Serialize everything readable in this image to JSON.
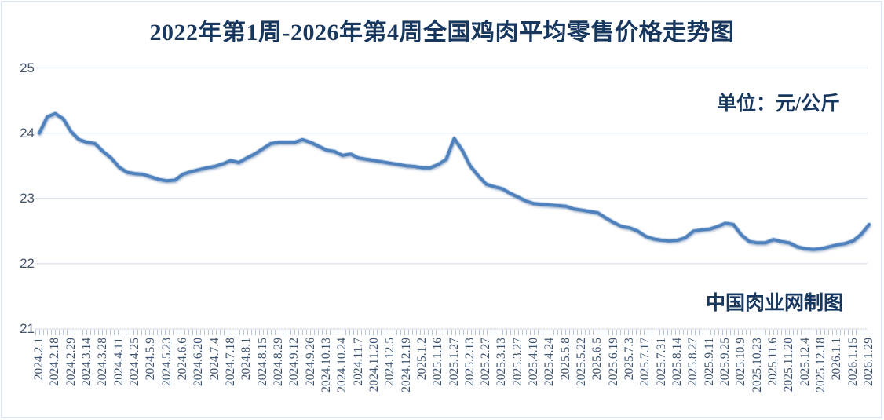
{
  "page": {
    "title": "2022年第1周-2026年第4周全国鸡肉平均零售价格走势图",
    "unit_label": "单位：元/公斤",
    "watermark": "中国肉业网制图"
  },
  "colors": {
    "title": "#17375e",
    "axis_labels": "#44546a",
    "grid": "#d9e1ea",
    "axis_ticks": "#b3c2d4",
    "line": "#4f81bd",
    "line_halo": "#9db8d8",
    "frame": "#dde7f3"
  },
  "chart_data": {
    "type": "line",
    "title": "2022年第1周-2026年第4周全国鸡肉平均零售价格走势图",
    "unit": "元/公斤",
    "xlabel": "",
    "ylabel": "",
    "ylim": [
      21,
      25
    ],
    "yticks": [
      25,
      24,
      23,
      22,
      21
    ],
    "grid": true,
    "legend": "none",
    "points_per_tick_label": 2,
    "x_tick_labels": [
      "2024.2.1",
      "2024.2.18",
      "2024.2.29",
      "2024.3.14",
      "2024.3.28",
      "2024.4.11",
      "2024.4.25",
      "2024.5.9",
      "2024.5.23",
      "2024.6.6",
      "2024.6.20",
      "2024.7.4",
      "2024.7.18",
      "2024.8.1",
      "2024.8.15",
      "2024.8.29",
      "2024.9.12",
      "2024.9.26",
      "2024.10.13",
      "2024.10.24",
      "2024.11.7",
      "2024.11.20",
      "2024.12.5",
      "2024.12.19",
      "2025.1.2",
      "2025.1.16",
      "2025.1.27",
      "2025.2.13",
      "2025.2.27",
      "2025.3.13",
      "2025.3.27",
      "2025.4.10",
      "2025.4.24",
      "2025.5.8",
      "2025.5.22",
      "2025.6.5",
      "2025.6.19",
      "2025.7.3",
      "2025.7.17",
      "2025.7.31",
      "2025.8.14",
      "2025.8.27",
      "2025.9.11",
      "2025.9.25",
      "2025.10.9",
      "2025.10.23",
      "2025.11.6",
      "2025.11.20",
      "2025.12.4",
      "2025.12.18",
      "2026.1.1",
      "2026.1.15",
      "2026.1.29"
    ],
    "series": [
      {
        "values": [
          24.0,
          24.25,
          24.3,
          24.22,
          24.02,
          23.9,
          23.86,
          23.84,
          23.72,
          23.62,
          23.48,
          23.4,
          23.38,
          23.37,
          23.33,
          23.29,
          23.27,
          23.28,
          23.37,
          23.41,
          23.44,
          23.47,
          23.49,
          23.53,
          23.58,
          23.55,
          23.62,
          23.68,
          23.76,
          23.84,
          23.86,
          23.86,
          23.86,
          23.9,
          23.86,
          23.8,
          23.74,
          23.72,
          23.66,
          23.68,
          23.62,
          23.6,
          23.58,
          23.56,
          23.54,
          23.52,
          23.5,
          23.49,
          23.47,
          23.47,
          23.52,
          23.6,
          23.92,
          23.74,
          23.5,
          23.35,
          23.22,
          23.18,
          23.15,
          23.08,
          23.02,
          22.96,
          22.92,
          22.91,
          22.9,
          22.89,
          22.88,
          22.84,
          22.82,
          22.8,
          22.78,
          22.7,
          22.63,
          22.57,
          22.55,
          22.5,
          22.42,
          22.38,
          22.36,
          22.35,
          22.36,
          22.4,
          22.5,
          22.52,
          22.53,
          22.57,
          22.62,
          22.6,
          22.44,
          22.34,
          22.32,
          22.32,
          22.37,
          22.34,
          22.32,
          22.26,
          22.23,
          22.22,
          22.23,
          22.26,
          22.29,
          22.31,
          22.35,
          22.45,
          22.6
        ]
      }
    ]
  }
}
